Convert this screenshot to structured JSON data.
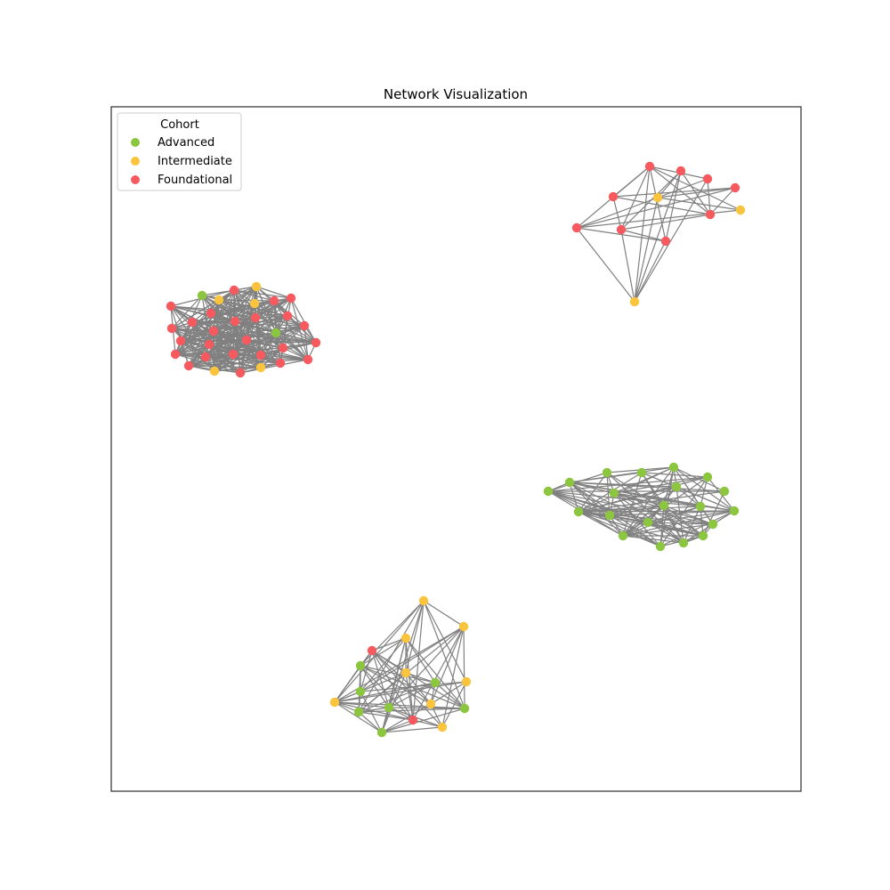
{
  "title": "Network Visualization",
  "legend": {
    "title": "Cohort",
    "entries": [
      {
        "label": "Advanced",
        "color": "#8cc63f"
      },
      {
        "label": "Intermediate",
        "color": "#fbc43d"
      },
      {
        "label": "Foundational",
        "color": "#f65a5f"
      }
    ]
  },
  "edge_color": "#808080",
  "colors": {
    "A": "#8cc63f",
    "I": "#fbc43d",
    "F": "#f65a5f"
  }
}
